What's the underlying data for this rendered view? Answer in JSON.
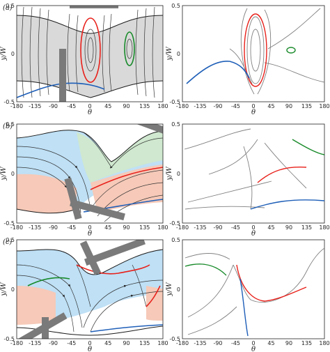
{
  "panels": [
    {
      "label": "(a)",
      "x_label": "θ",
      "y_label": "y/W"
    },
    {
      "label": "(b)",
      "x_label": "θ",
      "y_label": "y/W"
    },
    {
      "label": "(c)",
      "x_label": "θ",
      "y_label": "y/W"
    }
  ],
  "x_ticks": [
    "-180",
    "-135",
    "-90",
    "-45",
    "0",
    "45",
    "90",
    "135",
    "180"
  ],
  "y_ticks": [
    "0.5",
    "0",
    "-0.5"
  ],
  "colors": {
    "separatrix": "#1a1a1a",
    "fill_gray": "#d9d9d9",
    "fill_blue": "#bfe0f5",
    "fill_green": "#cfe8cf",
    "fill_pink": "#f6c9b8",
    "red": "#e8201a",
    "green": "#188a2a",
    "blue": "#1f5fb8",
    "wall": "#7a7a7a",
    "traj": "#808080"
  }
}
